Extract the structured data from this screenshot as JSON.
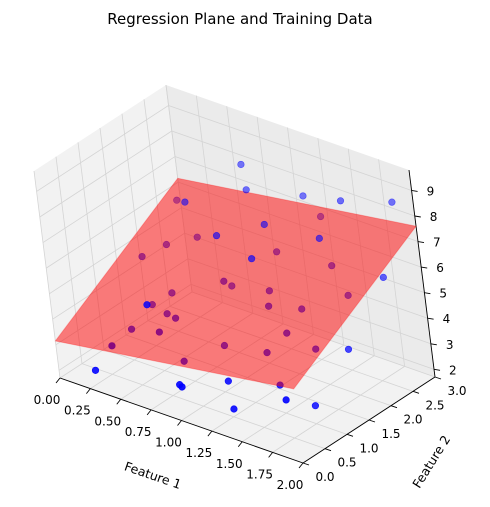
{
  "chart_data": {
    "type": "scatter",
    "title": "Regression Plane and Training Data",
    "xlabel": "Feature 1",
    "ylabel": "Feature 2",
    "zlabel": "",
    "x_ticks": [
      "0.00",
      "0.25",
      "0.50",
      "0.75",
      "1.00",
      "1.25",
      "1.50",
      "1.75",
      "2.00"
    ],
    "y_ticks": [
      "0.0",
      "0.5",
      "1.0",
      "1.5",
      "2.0",
      "2.5",
      "3.0"
    ],
    "z_ticks": [
      "2",
      "3",
      "4",
      "5",
      "6",
      "7",
      "8",
      "9"
    ],
    "xlim": [
      0,
      2
    ],
    "ylim": [
      0,
      3
    ],
    "zlim": [
      1.7,
      9.8
    ],
    "grid": true,
    "plane": {
      "color": "#ff0000",
      "corners": [
        {
          "x": 0,
          "y": 0,
          "z": 3.15
        },
        {
          "x": 2,
          "y": 0,
          "z": 4.6
        },
        {
          "x": 2,
          "y": 3,
          "z": 7.6
        },
        {
          "x": 0,
          "y": 3,
          "z": 6.15
        }
      ]
    },
    "series": [
      {
        "marker_color": "#0000ff",
        "points": [
          {
            "x": 0.15,
            "y": 0.4,
            "z": 1.8
          },
          {
            "x": 1.2,
            "y": 0.6,
            "z": 2.9
          },
          {
            "x": 0.5,
            "y": 0.8,
            "z": 4.5
          },
          {
            "x": 1.8,
            "y": 0.9,
            "z": 2.6
          },
          {
            "x": 0.3,
            "y": 1.4,
            "z": 3.5
          },
          {
            "x": 1.5,
            "y": 1.6,
            "z": 5.1
          },
          {
            "x": 0.9,
            "y": 0.3,
            "z": 2.6
          },
          {
            "x": 0.6,
            "y": 2.2,
            "z": 5.8
          },
          {
            "x": 1.9,
            "y": 2.8,
            "z": 8.6
          },
          {
            "x": 1.0,
            "y": 1.1,
            "z": 3.4
          },
          {
            "x": 0.2,
            "y": 2.6,
            "z": 6.0
          },
          {
            "x": 1.4,
            "y": 2.4,
            "z": 6.8
          },
          {
            "x": 0.8,
            "y": 1.9,
            "z": 4.5
          },
          {
            "x": 1.1,
            "y": 2.9,
            "z": 7.4
          },
          {
            "x": 0.4,
            "y": 0.2,
            "z": 3.4
          },
          {
            "x": 1.7,
            "y": 1.3,
            "z": 4.2
          },
          {
            "x": 0.7,
            "y": 2.7,
            "z": 7.2
          },
          {
            "x": 1.3,
            "y": 0.4,
            "z": 2.2
          },
          {
            "x": 0.1,
            "y": 1.8,
            "z": 4.6
          },
          {
            "x": 1.6,
            "y": 2.1,
            "z": 6.4
          },
          {
            "x": 0.5,
            "y": 1.2,
            "z": 3.7
          },
          {
            "x": 1.2,
            "y": 1.7,
            "z": 5.2
          },
          {
            "x": 0.9,
            "y": 2.5,
            "z": 6.4
          },
          {
            "x": 1.9,
            "y": 1.5,
            "z": 4.3
          },
          {
            "x": 0.3,
            "y": 0.9,
            "z": 3.1
          },
          {
            "x": 1.0,
            "y": 0.1,
            "z": 2.9
          },
          {
            "x": 1.4,
            "y": 1.0,
            "z": 3.9
          },
          {
            "x": 0.6,
            "y": 2.9,
            "z": 7.8
          },
          {
            "x": 1.8,
            "y": 0.3,
            "z": 3.5
          },
          {
            "x": 0.2,
            "y": 2.1,
            "z": 4.9
          },
          {
            "x": 1.1,
            "y": 2.2,
            "z": 6.0
          },
          {
            "x": 0.8,
            "y": 0.7,
            "z": 2.9
          },
          {
            "x": 1.5,
            "y": 2.7,
            "z": 8.1
          },
          {
            "x": 0.4,
            "y": 1.6,
            "z": 3.9
          },
          {
            "x": 1.3,
            "y": 1.4,
            "z": 5.1
          },
          {
            "x": 0.7,
            "y": 0.5,
            "z": 4.1
          },
          {
            "x": 1.6,
            "y": 0.7,
            "z": 3.3
          },
          {
            "x": 0.05,
            "y": 2.8,
            "z": 5.6
          },
          {
            "x": 1.0,
            "y": 1.9,
            "z": 5.9
          },
          {
            "x": 1.95,
            "y": 2.3,
            "z": 6.3
          },
          {
            "x": 0.9,
            "y": 1.5,
            "z": 5.3
          },
          {
            "x": 1.25,
            "y": 2.85,
            "z": 6.9
          },
          {
            "x": 0.35,
            "y": 2.4,
            "z": 5.1
          },
          {
            "x": 1.55,
            "y": 1.1,
            "z": 4.8
          },
          {
            "x": 0.65,
            "y": 1.0,
            "z": 4.0
          },
          {
            "x": 1.75,
            "y": 2.0,
            "z": 5.6
          }
        ]
      }
    ]
  }
}
